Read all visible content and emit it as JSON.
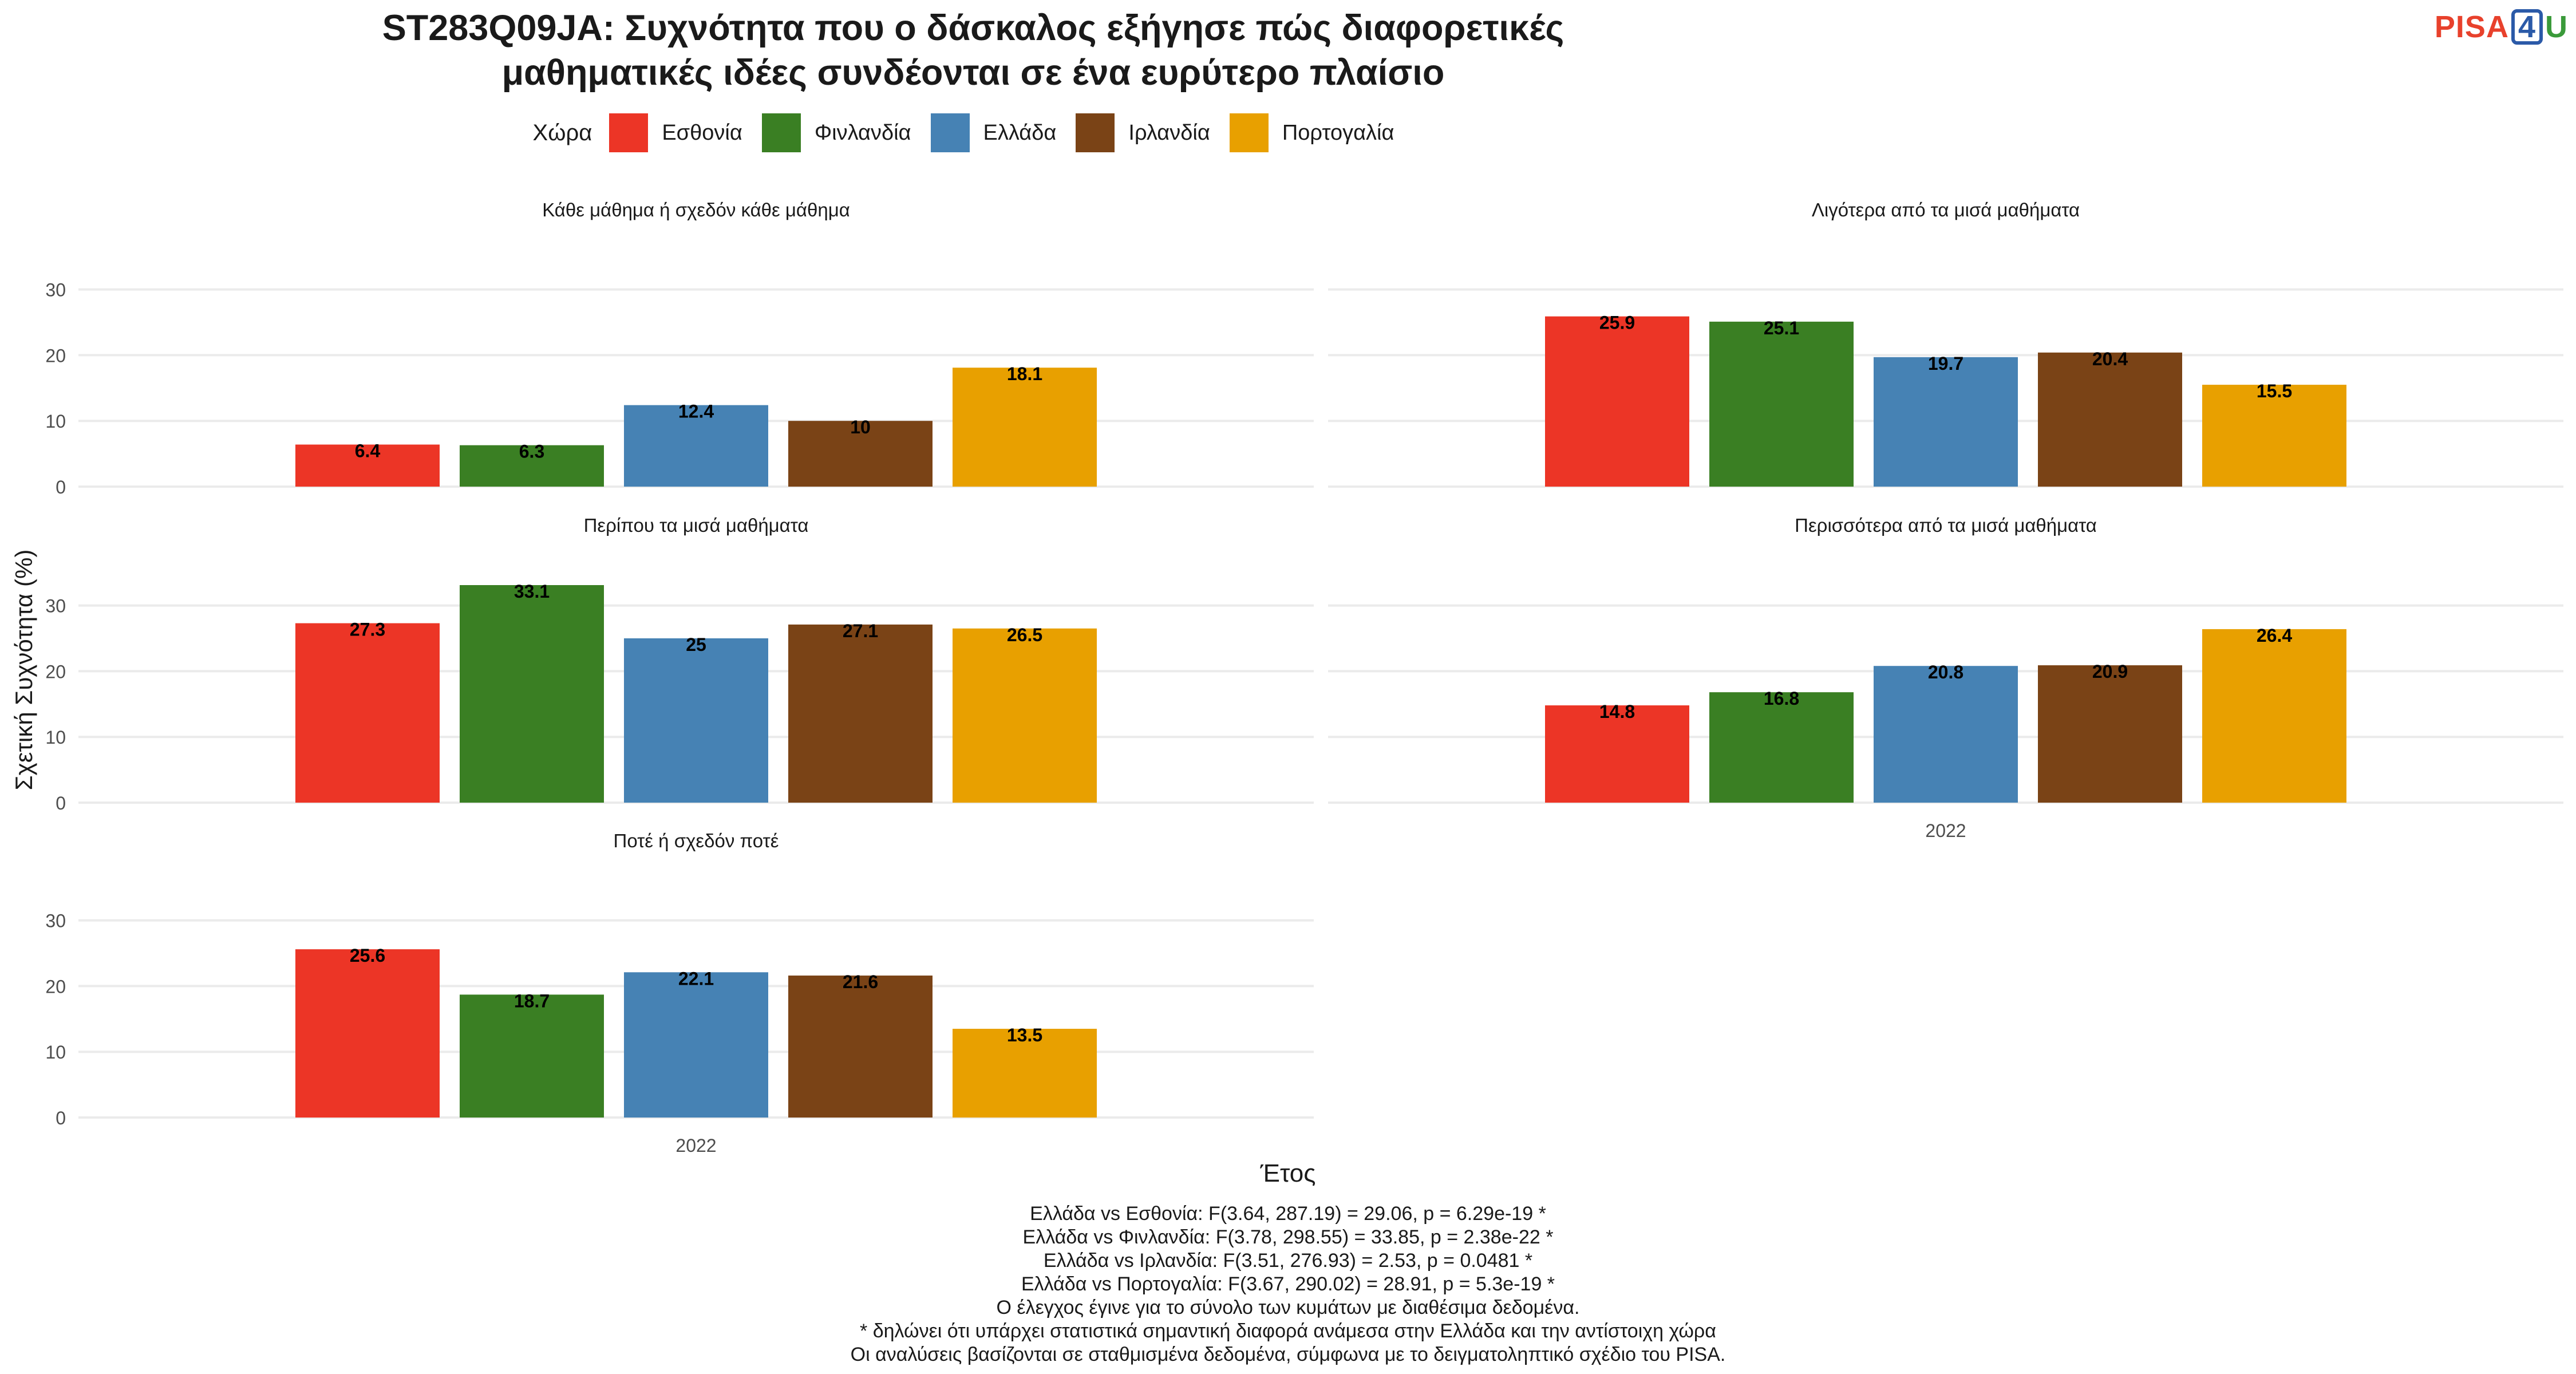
{
  "title": {
    "line1": "ST283Q09JA: Συχνότητα που ο δάσκαλος εξήγησε πώς διαφορετικές",
    "line2": "μαθηματικές ιδέες συνδέονται σε ένα ευρύτερο πλαίσιο"
  },
  "logo": {
    "pisa": "PISA",
    "four": "4",
    "u": "U"
  },
  "legend": {
    "title": "Χώρα",
    "items": [
      {
        "label": "Εσθονία",
        "color": "#ec3526"
      },
      {
        "label": "Φινλανδία",
        "color": "#3a7f23"
      },
      {
        "label": "Ελλάδα",
        "color": "#4682b4"
      },
      {
        "label": "Ιρλανδία",
        "color": "#7a4316"
      },
      {
        "label": "Πορτογαλία",
        "color": "#e8a000"
      }
    ]
  },
  "chart_data": {
    "type": "bar",
    "xlabel": "Έτος",
    "ylabel": "Σχετική Συχνότητα (%)",
    "ylim": [
      0,
      33.1
    ],
    "yticks": [
      0,
      10,
      20,
      30
    ],
    "grid": true,
    "legend_position": "top",
    "categories": [
      "2022"
    ],
    "series_names": [
      "Εσθονία",
      "Φινλανδία",
      "Ελλάδα",
      "Ιρλανδία",
      "Πορτογαλία"
    ],
    "colors": [
      "#ec3526",
      "#3a7f23",
      "#4682b4",
      "#7a4316",
      "#e8a000"
    ],
    "panels": [
      {
        "title": "Κάθε μάθημα ή σχεδόν κάθε μάθημα",
        "values": [
          6.4,
          6.3,
          12.4,
          10,
          18.1
        ],
        "labels": [
          "6.4",
          "6.3",
          "12.4",
          "10",
          "18.1"
        ],
        "show_x_tick": false
      },
      {
        "title": "Λιγότερα από τα μισά μαθήματα",
        "values": [
          25.9,
          25.1,
          19.7,
          20.4,
          15.5
        ],
        "labels": [
          "25.9",
          "25.1",
          "19.7",
          "20.4",
          "15.5"
        ],
        "show_x_tick": false
      },
      {
        "title": "Περίπου τα μισά μαθήματα",
        "values": [
          27.3,
          33.1,
          25,
          27.1,
          26.5
        ],
        "labels": [
          "27.3",
          "33.1",
          "25",
          "27.1",
          "26.5"
        ],
        "show_x_tick": false
      },
      {
        "title": "Περισσότερα από τα μισά μαθήματα",
        "values": [
          14.8,
          16.8,
          20.8,
          20.9,
          26.4
        ],
        "labels": [
          "14.8",
          "16.8",
          "20.8",
          "20.9",
          "26.4"
        ],
        "show_x_tick": true
      },
      {
        "title": "Ποτέ ή σχεδόν ποτέ",
        "values": [
          25.6,
          18.7,
          22.1,
          21.6,
          13.5
        ],
        "labels": [
          "25.6",
          "18.7",
          "22.1",
          "21.6",
          "13.5"
        ],
        "show_x_tick": true
      }
    ]
  },
  "notes": [
    "Ελλάδα vs Εσθονία: F(3.64, 287.19) = 29.06, p = 6.29e-19 *",
    "Ελλάδα vs Φινλανδία: F(3.78, 298.55) = 33.85, p = 2.38e-22 *",
    "Ελλάδα vs Ιρλανδία: F(3.51, 276.93) = 2.53, p = 0.0481 *",
    "Ελλάδα vs Πορτογαλία: F(3.67, 290.02) = 28.91, p = 5.3e-19 *",
    "Ο έλεγχος έγινε για το σύνολο των κυμάτων με διαθέσιμα δεδομένα.",
    "* δηλώνει ότι υπάρχει στατιστικά σημαντική διαφορά ανάμεσα στην Ελλάδα και την αντίστοιχη χώρα",
    "Οι αναλύσεις βασίζονται σε σταθμισμένα δεδομένα, σύμφωνα με το δειγματοληπτικό σχέδιο του PISA."
  ]
}
